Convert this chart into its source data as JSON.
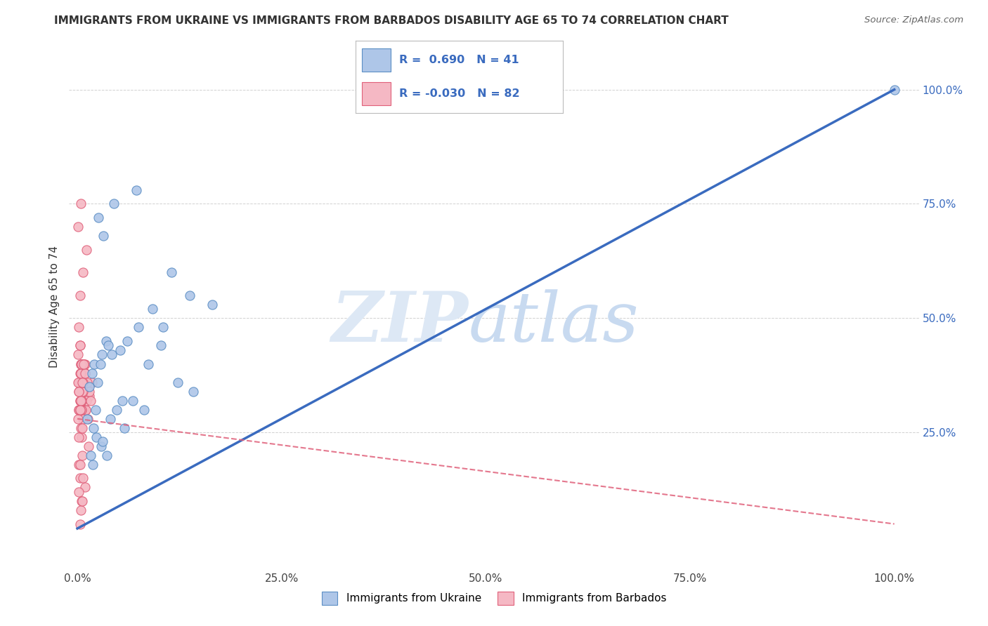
{
  "title": "IMMIGRANTS FROM UKRAINE VS IMMIGRANTS FROM BARBADOS DISABILITY AGE 65 TO 74 CORRELATION CHART",
  "source": "Source: ZipAtlas.com",
  "ylabel": "Disability Age 65 to 74",
  "x_tick_labels": [
    "0.0%",
    "25.0%",
    "50.0%",
    "75.0%",
    "100.0%"
  ],
  "x_tick_vals": [
    0.0,
    25.0,
    50.0,
    75.0,
    100.0
  ],
  "y_tick_labels": [
    "25.0%",
    "50.0%",
    "75.0%",
    "100.0%"
  ],
  "y_tick_vals": [
    25.0,
    50.0,
    75.0,
    100.0
  ],
  "xlim": [
    -1.0,
    103.0
  ],
  "ylim": [
    -5.0,
    110.0
  ],
  "ukraine_R": 0.69,
  "ukraine_N": 41,
  "barbados_R": -0.03,
  "barbados_N": 82,
  "ukraine_color": "#aec6e8",
  "ukraine_edge": "#5b8ec4",
  "barbados_color": "#f5b8c4",
  "barbados_edge": "#e0607a",
  "ukraine_line_color": "#3a6bbf",
  "barbados_line_color": "#e0607a",
  "background_color": "#ffffff",
  "grid_color": "#cccccc",
  "watermark_color": "#dde8f5",
  "ukraine_line_x": [
    0.0,
    100.0
  ],
  "ukraine_line_y": [
    4.0,
    100.0
  ],
  "barbados_line_x": [
    0.0,
    100.0
  ],
  "barbados_line_y": [
    28.0,
    5.0
  ],
  "ukraine_scatter_x": [
    2.1,
    3.5,
    5.2,
    1.8,
    2.5,
    3.0,
    1.5,
    2.8,
    4.2,
    6.1,
    7.5,
    2.2,
    3.8,
    5.5,
    1.2,
    4.8,
    3.2,
    2.6,
    4.5,
    7.2,
    10.5,
    16.5,
    2.9,
    1.9,
    3.6,
    5.8,
    2.3,
    3.1,
    4.0,
    6.8,
    8.2,
    12.3,
    14.2,
    1.6,
    2.0,
    9.2,
    11.5,
    13.8,
    8.7,
    10.2,
    100.0
  ],
  "ukraine_scatter_y": [
    40.0,
    45.0,
    43.0,
    38.0,
    36.0,
    42.0,
    35.0,
    40.0,
    42.0,
    45.0,
    48.0,
    30.0,
    44.0,
    32.0,
    28.0,
    30.0,
    68.0,
    72.0,
    75.0,
    78.0,
    48.0,
    53.0,
    22.0,
    18.0,
    20.0,
    26.0,
    24.0,
    23.0,
    28.0,
    32.0,
    30.0,
    36.0,
    34.0,
    20.0,
    26.0,
    52.0,
    60.0,
    55.0,
    40.0,
    44.0,
    100.0
  ],
  "barbados_scatter_x": [
    0.2,
    0.3,
    0.5,
    0.8,
    1.0,
    1.2,
    1.5,
    0.1,
    0.4,
    0.6,
    0.9,
    1.3,
    1.8,
    0.2,
    0.3,
    0.7,
    1.1,
    0.4,
    0.5,
    0.8,
    0.2,
    0.3,
    0.6,
    0.9,
    1.4,
    0.1,
    0.4,
    0.7,
    1.0,
    1.5,
    0.2,
    0.3,
    0.5,
    0.8,
    0.1,
    0.4,
    0.6,
    0.9,
    0.3,
    0.5,
    0.2,
    0.7,
    1.1,
    0.4,
    0.6,
    0.8,
    0.3,
    0.5,
    0.1,
    0.2,
    0.4,
    0.7,
    0.9,
    0.3,
    0.5,
    0.8,
    0.2,
    0.4,
    0.6,
    0.9,
    0.3,
    1.2,
    0.5,
    0.8,
    0.2,
    0.4,
    1.6,
    0.7,
    0.3,
    0.5,
    0.2,
    0.9,
    0.4,
    0.6,
    0.3,
    0.8,
    0.5,
    0.2,
    0.4,
    0.7,
    0.3,
    0.6
  ],
  "barbados_scatter_y": [
    36.0,
    38.0,
    32.0,
    34.0,
    30.0,
    35.0,
    33.0,
    42.0,
    36.0,
    40.0,
    38.0,
    28.0,
    36.0,
    48.0,
    55.0,
    60.0,
    65.0,
    26.0,
    24.0,
    30.0,
    18.0,
    15.0,
    20.0,
    13.0,
    22.0,
    70.0,
    75.0,
    28.0,
    30.0,
    34.0,
    36.0,
    32.0,
    40.0,
    38.0,
    28.0,
    32.0,
    36.0,
    40.0,
    44.0,
    30.0,
    24.0,
    36.0,
    32.0,
    38.0,
    26.0,
    40.0,
    18.0,
    32.0,
    36.0,
    30.0,
    40.0,
    34.0,
    38.0,
    44.0,
    32.0,
    36.0,
    30.0,
    40.0,
    34.0,
    38.0,
    32.0,
    36.0,
    30.0,
    40.0,
    34.0,
    38.0,
    32.0,
    36.0,
    30.0,
    40.0,
    34.0,
    38.0,
    32.0,
    36.0,
    30.0,
    40.0,
    10.0,
    12.0,
    8.0,
    15.0,
    5.0,
    10.0
  ]
}
